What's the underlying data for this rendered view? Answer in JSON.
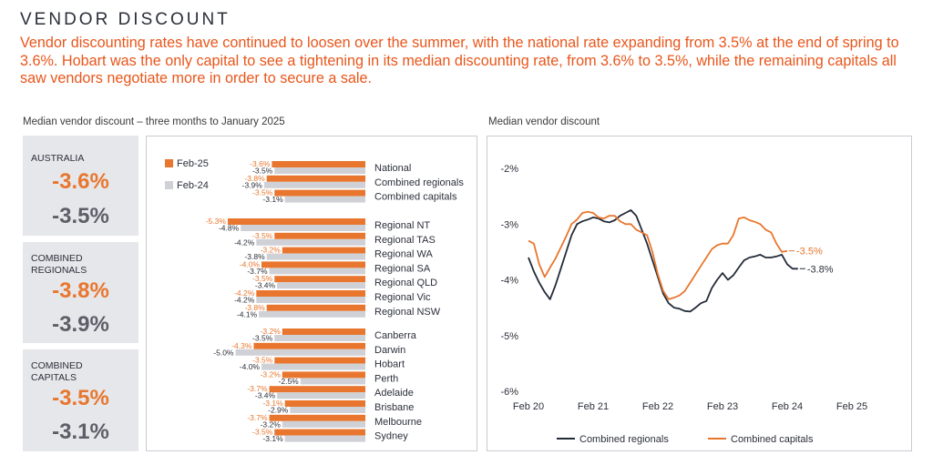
{
  "header": {
    "title": "VENDOR DISCOUNT",
    "intro": "Vendor discounting rates have continued to loosen over the summer, with the national rate expanding from 3.5% at the end of spring to 3.6%. Hobart was the only capital to see a tightening in its median discounting rate, from 3.6% to 3.5%, while the remaining capitals all saw vendors negotiate more in order to secure a sale."
  },
  "captions": {
    "left": "Median vendor discount – three months to January 2025",
    "right": "Median vendor discount"
  },
  "stats": [
    {
      "label": "AUSTRALIA",
      "label_lines": [
        "AUSTRALIA"
      ],
      "current": "-3.6%",
      "previous": "-3.5%"
    },
    {
      "label": "COMBINED REGIONALS",
      "label_lines": [
        "COMBINED",
        "REGIONALS"
      ],
      "current": "-3.8%",
      "previous": "-3.9%"
    },
    {
      "label": "COMBINED CAPITALS",
      "label_lines": [
        "COMBINED",
        "CAPITALS"
      ],
      "current": "-3.5%",
      "previous": "-3.1%"
    }
  ],
  "colors": {
    "orange": "#e8762e",
    "grey_bar": "#cfd1d6",
    "navy": "#222b38",
    "headline": "#e8561b"
  },
  "chart_data": [
    {
      "type": "bar",
      "orientation": "horizontal",
      "title": "Median vendor discount – three months to January 2025",
      "legend": [
        "Feb-25",
        "Feb-24"
      ],
      "legend_position": "top-left",
      "groups": [
        {
          "name": "summary",
          "categories": [
            "National",
            "Combined regionals",
            "Combined capitals"
          ],
          "feb25": [
            -3.6,
            -3.8,
            -3.5
          ],
          "feb24": [
            -3.5,
            -3.9,
            -3.1
          ],
          "feb25_labels": [
            "-3.6%",
            "-3.8%",
            "-3.5%"
          ],
          "feb24_labels": [
            "-3.5%",
            "-3.9%",
            "-3.1%"
          ]
        },
        {
          "name": "regions",
          "categories": [
            "Regional NT",
            "Regional TAS",
            "Regional WA",
            "Regional SA",
            "Regional QLD",
            "Regional Vic",
            "Regional NSW"
          ],
          "feb25": [
            -5.3,
            -3.5,
            -3.2,
            -4.0,
            -3.5,
            -4.2,
            -3.8
          ],
          "feb24": [
            -4.8,
            -4.2,
            -3.8,
            -3.7,
            -3.4,
            -4.2,
            -4.1
          ],
          "feb25_labels": [
            "-5.3%",
            "-3.5%",
            "-3.2%",
            "-4.0%",
            "-3.5%",
            "-4.2%",
            "-3.8%"
          ],
          "feb24_labels": [
            "-4.8%",
            "-4.2%",
            "-3.8%",
            "-3.7%",
            "-3.4%",
            "-4.2%",
            "-4.1%"
          ]
        },
        {
          "name": "capitals",
          "categories": [
            "Canberra",
            "Darwin",
            "Hobart",
            "Perth",
            "Adelaide",
            "Brisbane",
            "Melbourne",
            "Sydney"
          ],
          "feb25": [
            -3.2,
            -4.3,
            -3.5,
            -3.2,
            -3.7,
            -3.1,
            -3.7,
            -3.5
          ],
          "feb24": [
            -3.5,
            -5.0,
            -4.0,
            -2.5,
            -3.4,
            -2.9,
            -3.2,
            -3.1
          ],
          "feb25_labels": [
            "-3.2%",
            "-4.3%",
            "-3.5%",
            "-3.2%",
            "-3.7%",
            "-3.1%",
            "-3.7%",
            "-3.5%"
          ],
          "feb24_labels": [
            "-3.5%",
            "-5.0%",
            "-4.0%",
            "-2.5%",
            "-3.4%",
            "-2.9%",
            "-3.2%",
            "-3.1%"
          ]
        }
      ]
    },
    {
      "type": "line",
      "title": "Median vendor discount",
      "xlabels": [
        "Feb 20",
        "Feb 21",
        "Feb 22",
        "Feb 23",
        "Feb 24",
        "Feb 25"
      ],
      "x_range": [
        0,
        60
      ],
      "ylim": [
        -6,
        -2
      ],
      "yticks": [
        -2,
        -3,
        -4,
        -5,
        -6
      ],
      "ytick_labels": [
        "-2%",
        "-3%",
        "-4%",
        "-5%",
        "-6%"
      ],
      "grid": false,
      "legend_position": "bottom",
      "series": [
        {
          "name": "Combined regionals",
          "color": "#222b38",
          "end_label": "-3.8%",
          "points": [
            [
              0,
              -3.6
            ],
            [
              1,
              -3.85
            ],
            [
              2,
              -4.05
            ],
            [
              3,
              -4.22
            ],
            [
              4,
              -4.35
            ],
            [
              5,
              -4.1
            ],
            [
              6,
              -3.8
            ],
            [
              7,
              -3.5
            ],
            [
              8,
              -3.2
            ],
            [
              9,
              -3.0
            ],
            [
              10,
              -2.95
            ],
            [
              11,
              -2.92
            ],
            [
              12,
              -2.88
            ],
            [
              13,
              -2.9
            ],
            [
              14,
              -2.95
            ],
            [
              15,
              -2.97
            ],
            [
              16,
              -2.93
            ],
            [
              17,
              -2.85
            ],
            [
              18,
              -2.8
            ],
            [
              19,
              -2.75
            ],
            [
              20,
              -2.85
            ],
            [
              21,
              -3.1
            ],
            [
              22,
              -3.35
            ],
            [
              23,
              -3.65
            ],
            [
              24,
              -3.95
            ],
            [
              25,
              -4.25
            ],
            [
              26,
              -4.42
            ],
            [
              27,
              -4.5
            ],
            [
              28,
              -4.52
            ],
            [
              29,
              -4.56
            ],
            [
              30,
              -4.57
            ],
            [
              31,
              -4.5
            ],
            [
              32,
              -4.42
            ],
            [
              33,
              -4.38
            ],
            [
              34,
              -4.15
            ],
            [
              35,
              -4.0
            ],
            [
              36,
              -3.88
            ],
            [
              37,
              -4.0
            ],
            [
              38,
              -3.92
            ],
            [
              39,
              -3.78
            ],
            [
              40,
              -3.65
            ],
            [
              41,
              -3.6
            ],
            [
              42,
              -3.58
            ],
            [
              43,
              -3.55
            ],
            [
              44,
              -3.6
            ],
            [
              45,
              -3.6
            ],
            [
              46,
              -3.58
            ],
            [
              47,
              -3.55
            ],
            [
              48,
              -3.72
            ],
            [
              49,
              -3.8
            ],
            [
              50,
              -3.8
            ]
          ]
        },
        {
          "name": "Combined capitals",
          "color": "#e8762e",
          "end_label": "-3.5%",
          "points": [
            [
              0,
              -3.3
            ],
            [
              1,
              -3.35
            ],
            [
              2,
              -3.72
            ],
            [
              3,
              -3.95
            ],
            [
              4,
              -3.78
            ],
            [
              5,
              -3.62
            ],
            [
              6,
              -3.42
            ],
            [
              7,
              -3.22
            ],
            [
              8,
              -3.0
            ],
            [
              9,
              -2.92
            ],
            [
              10,
              -2.8
            ],
            [
              11,
              -2.78
            ],
            [
              12,
              -2.8
            ],
            [
              13,
              -2.88
            ],
            [
              14,
              -2.9
            ],
            [
              15,
              -2.85
            ],
            [
              16,
              -2.85
            ],
            [
              17,
              -2.95
            ],
            [
              18,
              -3.0
            ],
            [
              19,
              -3.0
            ],
            [
              20,
              -3.1
            ],
            [
              21,
              -3.15
            ],
            [
              22,
              -3.2
            ],
            [
              23,
              -3.5
            ],
            [
              24,
              -3.9
            ],
            [
              25,
              -4.2
            ],
            [
              26,
              -4.35
            ],
            [
              27,
              -4.32
            ],
            [
              28,
              -4.28
            ],
            [
              29,
              -4.2
            ],
            [
              30,
              -4.05
            ],
            [
              31,
              -3.9
            ],
            [
              32,
              -3.75
            ],
            [
              33,
              -3.6
            ],
            [
              34,
              -3.45
            ],
            [
              35,
              -3.38
            ],
            [
              36,
              -3.35
            ],
            [
              37,
              -3.35
            ],
            [
              38,
              -3.2
            ],
            [
              39,
              -2.9
            ],
            [
              40,
              -2.88
            ],
            [
              41,
              -2.93
            ],
            [
              42,
              -2.96
            ],
            [
              43,
              -3.0
            ],
            [
              44,
              -3.1
            ],
            [
              45,
              -3.15
            ],
            [
              46,
              -3.35
            ],
            [
              47,
              -3.5
            ],
            [
              48,
              -3.48
            ]
          ]
        }
      ]
    }
  ]
}
